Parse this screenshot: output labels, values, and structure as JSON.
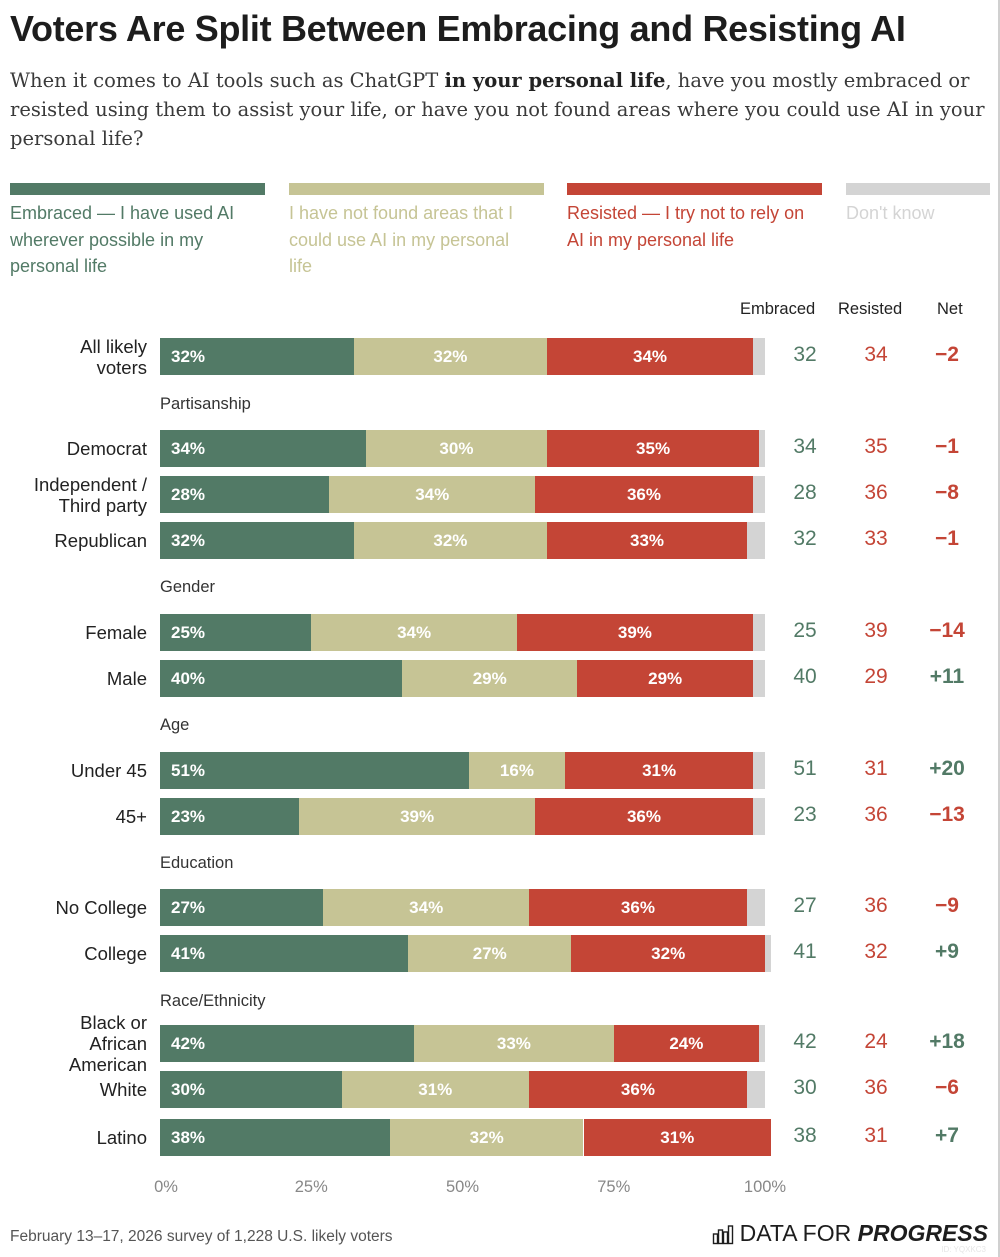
{
  "header": {
    "title": "Voters Are Split Between Embracing and Resisting AI",
    "subtitle_pre": "When it comes to AI tools such as ChatGPT ",
    "subtitle_bold": "in your personal life",
    "subtitle_post": ", have you mostly embraced or resisted using them to assist your life, or have you not found areas where you could use AI in your personal life?"
  },
  "colors": {
    "embraced": "#527a66",
    "not_found": "#c6c495",
    "resisted": "#c44536",
    "dont_know": "#d4d4d4",
    "text_dark": "#1d1d1d"
  },
  "columns": {
    "embraced": "Embraced",
    "resisted": "Resisted",
    "net": "Net"
  },
  "footer": {
    "note": "February 13–17, 2026 survey of 1,228 U.S. likely voters",
    "logo_regular": "DATA FOR ",
    "logo_bold": "PROGRESS",
    "logo_icon": "bar-chart-icon",
    "watermark": "ID: YQXKC3"
  },
  "chart_data": {
    "type": "bar",
    "orientation": "horizontal",
    "stacked": true,
    "title": "Voters Are Split Between Embracing and Resisting AI",
    "xlim": [
      0,
      100
    ],
    "x_ticks": [
      "0%",
      "25%",
      "50%",
      "75%",
      "100%"
    ],
    "legend_position": "top",
    "legend": [
      {
        "key": "embraced",
        "label": "Embraced — I have used AI wherever possible in my personal life",
        "color": "#527a66"
      },
      {
        "key": "not_found",
        "label": "I have not found areas that I could use AI in my personal life",
        "color": "#c6c495"
      },
      {
        "key": "resisted",
        "label": "Resisted — I try not to rely on AI in my personal life",
        "color": "#c44536"
      },
      {
        "key": "dont_know",
        "label": "Don't know",
        "color": "#d4d4d4"
      }
    ],
    "groups": [
      {
        "name": "",
        "rows": [
          {
            "label": "All likely voters",
            "embraced": 32,
            "not_found": 32,
            "resisted": 34,
            "dont_know": 2,
            "net": "−2"
          }
        ]
      },
      {
        "name": "Partisanship",
        "rows": [
          {
            "label": "Democrat",
            "embraced": 34,
            "not_found": 30,
            "resisted": 35,
            "dont_know": 1,
            "net": "−1"
          },
          {
            "label": "Independent / Third party",
            "embraced": 28,
            "not_found": 34,
            "resisted": 36,
            "dont_know": 2,
            "net": "−8"
          },
          {
            "label": "Republican",
            "embraced": 32,
            "not_found": 32,
            "resisted": 33,
            "dont_know": 3,
            "net": "−1"
          }
        ]
      },
      {
        "name": "Gender",
        "rows": [
          {
            "label": "Female",
            "embraced": 25,
            "not_found": 34,
            "resisted": 39,
            "dont_know": 2,
            "net": "−14"
          },
          {
            "label": "Male",
            "embraced": 40,
            "not_found": 29,
            "resisted": 29,
            "dont_know": 2,
            "net": "+11"
          }
        ]
      },
      {
        "name": "Age",
        "rows": [
          {
            "label": "Under 45",
            "embraced": 51,
            "not_found": 16,
            "resisted": 31,
            "dont_know": 2,
            "net": "+20"
          },
          {
            "label": "45+",
            "embraced": 23,
            "not_found": 39,
            "resisted": 36,
            "dont_know": 2,
            "net": "−13"
          }
        ]
      },
      {
        "name": "Education",
        "rows": [
          {
            "label": "No College",
            "embraced": 27,
            "not_found": 34,
            "resisted": 36,
            "dont_know": 3,
            "net": "−9"
          },
          {
            "label": "College",
            "embraced": 41,
            "not_found": 27,
            "resisted": 32,
            "dont_know": 1,
            "net": "+9"
          }
        ]
      },
      {
        "name": "Race/Ethnicity",
        "rows": [
          {
            "label": "Black or African American",
            "embraced": 42,
            "not_found": 33,
            "resisted": 24,
            "dont_know": 1,
            "net": "+18"
          },
          {
            "label": "White",
            "embraced": 30,
            "not_found": 31,
            "resisted": 36,
            "dont_know": 3,
            "net": "−6"
          },
          {
            "label": "Latino",
            "embraced": 38,
            "not_found": 32,
            "resisted": 31,
            "dont_know": 0,
            "net": "+7"
          }
        ]
      }
    ]
  }
}
